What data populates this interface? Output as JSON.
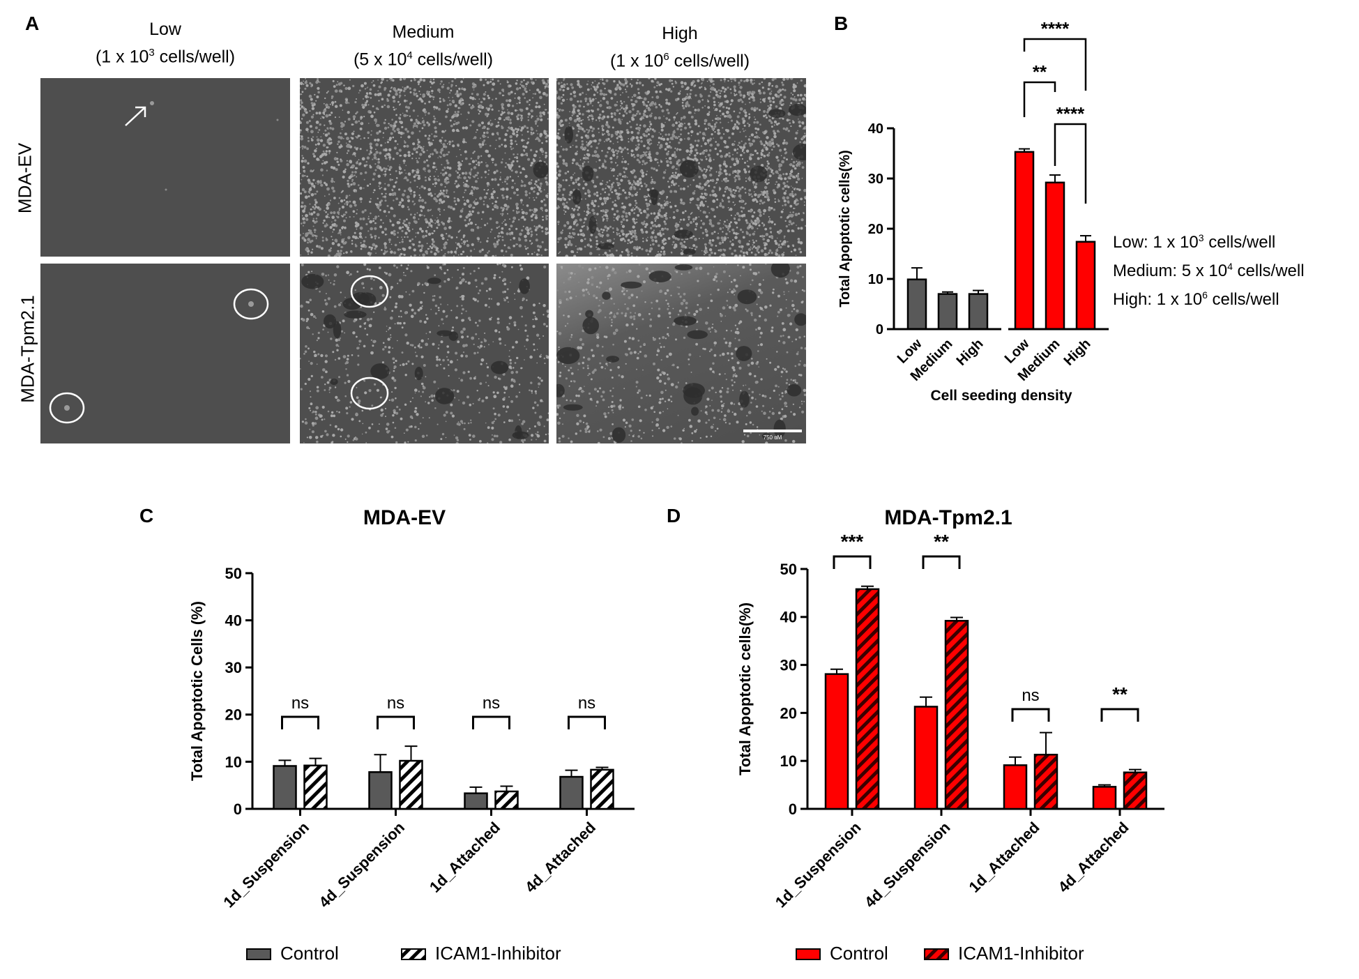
{
  "panel_a": {
    "letter": "A",
    "columns": [
      {
        "name": "Low",
        "density": "(1 x 10",
        "exp": "3",
        "suffix": " cells/well)"
      },
      {
        "name": "Medium",
        "density": "(5 x 10",
        "exp": "4",
        "suffix": " cells/well)"
      },
      {
        "name": "High",
        "density": "(1 x 10",
        "exp": "6",
        "suffix": " cells/well)"
      }
    ],
    "rows": [
      "MDA-EV",
      "MDA-Tpm2.1"
    ],
    "scale_bar_label": "750 uM"
  },
  "panel_b": {
    "letter": "B",
    "notes": [
      {
        "label": "Low: 1 x 10",
        "exp": "3",
        "suffix": " cells/well"
      },
      {
        "label": "Medium: 5 x 10",
        "exp": "4",
        "suffix": " cells/well"
      },
      {
        "label": "High: 1 x 10",
        "exp": "6",
        "suffix": " cells/well"
      }
    ]
  },
  "panel_c": {
    "letter": "C"
  },
  "panel_d": {
    "letter": "D"
  },
  "chart_data": [
    {
      "id": "B",
      "type": "bar",
      "title": "",
      "xlabel": "Cell seeding density",
      "ylabel": "Total Apoptotic cells(%)",
      "ylim": [
        0,
        40
      ],
      "yticks": [
        0,
        10,
        20,
        30,
        40
      ],
      "categories": [
        "Low",
        "Medium",
        "High"
      ],
      "series": [
        {
          "name": "MDA-EV",
          "color": "#595959",
          "pattern": "solid",
          "values": [
            9.9,
            7.0,
            7.0
          ],
          "errors": [
            2.3,
            0.4,
            0.7
          ]
        },
        {
          "name": "MDA-Tpm2.1",
          "color": "#ff0000",
          "pattern": "solid",
          "values": [
            35.3,
            29.2,
            17.4
          ],
          "errors": [
            0.6,
            1.5,
            1.2
          ]
        }
      ],
      "significance": [
        {
          "label": "**",
          "from": [
            1,
            0
          ],
          "to": [
            1,
            1
          ]
        },
        {
          "label": "****",
          "from": [
            1,
            0
          ],
          "to": [
            1,
            2
          ]
        },
        {
          "label": "****",
          "from": [
            1,
            1
          ],
          "to": [
            1,
            2
          ]
        }
      ],
      "legend": "bottom"
    },
    {
      "id": "C",
      "type": "bar",
      "title": "MDA-EV",
      "xlabel": "",
      "ylabel": "Total Apoptotic Cells  (%)",
      "ylim": [
        0,
        50
      ],
      "yticks": [
        0,
        10,
        20,
        30,
        40,
        50
      ],
      "categories": [
        "1d_Suspension",
        "4d_Suspension",
        "1d_Attached",
        "4d_Attached"
      ],
      "series": [
        {
          "name": "Control",
          "color": "#595959",
          "pattern": "solid",
          "values": [
            9.1,
            7.8,
            3.3,
            6.8
          ],
          "errors": [
            1.2,
            3.7,
            1.3,
            1.4
          ]
        },
        {
          "name": "ICAM1-Inhibitor",
          "color": "#595959",
          "pattern": "hatch-white",
          "values": [
            9.2,
            10.2,
            3.7,
            8.3
          ],
          "errors": [
            1.5,
            3.1,
            1.1,
            0.5
          ]
        }
      ],
      "significance_labels": [
        "ns",
        "ns",
        "ns",
        "ns"
      ],
      "legend": "bottom"
    },
    {
      "id": "D",
      "type": "bar",
      "title": "MDA-Tpm2.1",
      "xlabel": "",
      "ylabel": "Total Apoptotic cells(%)",
      "ylim": [
        0,
        50
      ],
      "yticks": [
        0,
        10,
        20,
        30,
        40,
        50
      ],
      "categories": [
        "1d_Suspension",
        "4d_Suspension",
        "1d_Attached",
        "4d_Attached"
      ],
      "series": [
        {
          "name": "Control",
          "color": "#ff0000",
          "pattern": "solid",
          "values": [
            28.1,
            21.3,
            9.1,
            4.6
          ],
          "errors": [
            1.0,
            2.0,
            1.7,
            0.4
          ]
        },
        {
          "name": "ICAM1-Inhibitor",
          "color": "#ff0000",
          "pattern": "hatch-dark",
          "values": [
            45.8,
            39.2,
            11.3,
            7.6
          ],
          "errors": [
            0.6,
            0.7,
            4.6,
            0.6
          ]
        }
      ],
      "significance_labels": [
        "***",
        "**",
        "ns",
        "**"
      ],
      "legend": "bottom"
    }
  ]
}
